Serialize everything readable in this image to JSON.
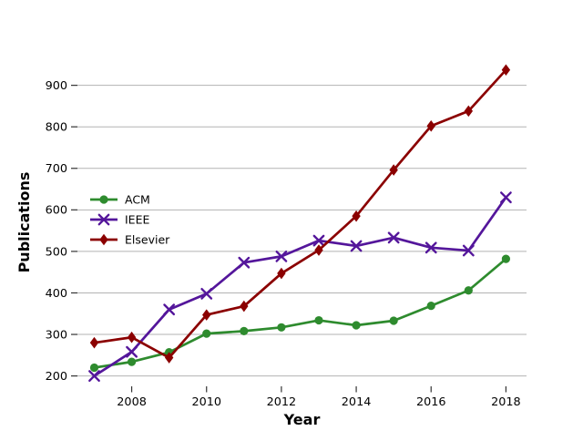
{
  "chart_data": {
    "type": "line",
    "title": "",
    "xlabel": "Year",
    "ylabel": "Publications",
    "x": [
      2007,
      2008,
      2009,
      2010,
      2011,
      2012,
      2013,
      2014,
      2015,
      2016,
      2017,
      2018
    ],
    "series": [
      {
        "name": "ACM",
        "color": "#2e8b2e",
        "marker": "circle",
        "values": [
          220,
          234,
          257,
          302,
          308,
          317,
          334,
          322,
          333,
          369,
          406,
          482
        ]
      },
      {
        "name": "IEEE",
        "color": "#54169b",
        "marker": "x",
        "values": [
          200,
          258,
          360,
          398,
          473,
          488,
          526,
          513,
          533,
          509,
          502,
          630
        ]
      },
      {
        "name": "Elsevier",
        "color": "#8b0000",
        "marker": "diamond",
        "values": [
          280,
          293,
          244,
          347,
          368,
          447,
          503,
          585,
          696,
          802,
          838,
          937
        ]
      }
    ],
    "xticks": [
      2008,
      2010,
      2012,
      2014,
      2016,
      2018
    ],
    "yticks": [
      200,
      300,
      400,
      500,
      600,
      700,
      800,
      900
    ],
    "xlim": [
      2006.55,
      2018.55
    ],
    "ylim": [
      175,
      965
    ],
    "grid": "horizontal-only",
    "gridline_color": "#b3b3b3",
    "tick_color": "#333333",
    "legend_position": "center-left",
    "legend_frame": false
  }
}
